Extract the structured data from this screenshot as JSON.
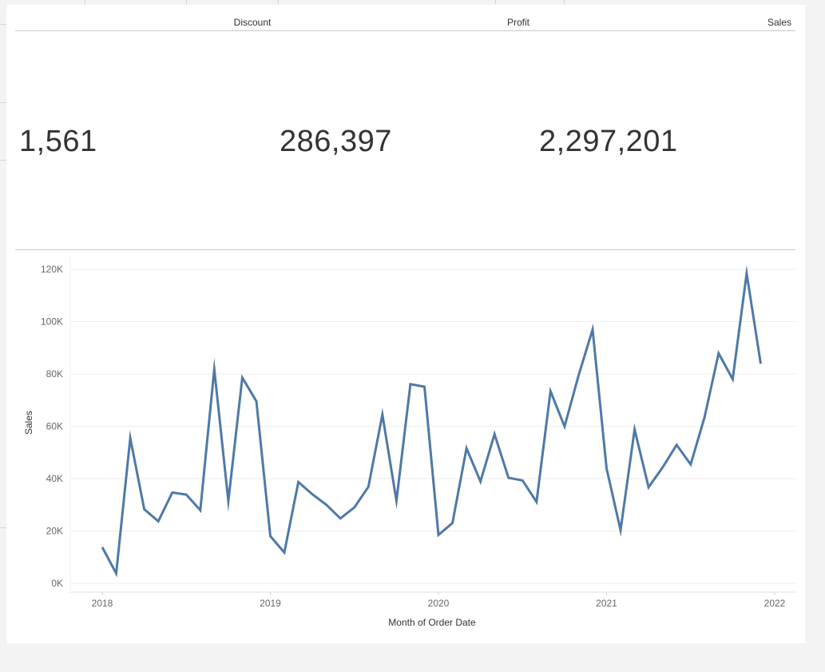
{
  "kpis": [
    {
      "label": "Discount",
      "value": "1,561"
    },
    {
      "label": "Profit",
      "value": "286,397"
    },
    {
      "label": "Sales",
      "value": "2,297,201"
    }
  ],
  "colors": {
    "line": "#4e79a7",
    "grid": "#eeeeee",
    "axis_text": "#666666"
  },
  "chart_data": {
    "type": "line",
    "title": "",
    "xlabel": "Month of Order Date",
    "ylabel": "Sales",
    "ylim": [
      0,
      120000
    ],
    "y_ticks": [
      "0K",
      "20K",
      "40K",
      "60K",
      "80K",
      "100K",
      "120K"
    ],
    "x_ticks": [
      "2018",
      "2019",
      "2020",
      "2021",
      "2022"
    ],
    "grid": true,
    "series": [
      {
        "values": [
          13800,
          3800,
          55500,
          28300,
          23700,
          34700,
          33900,
          27900,
          81800,
          31400,
          78600,
          69600,
          18000,
          11800,
          38700,
          34000,
          30000,
          24800,
          29000,
          36900,
          64500,
          31500,
          76100,
          75100,
          18500,
          23000,
          51600,
          38900,
          57000,
          40300,
          39300,
          31100,
          73400,
          59900,
          79400,
          97000,
          43900,
          20300,
          58800,
          36700,
          44300,
          52900,
          45400,
          63600,
          87900,
          78000,
          118400,
          83900
        ]
      }
    ],
    "x_start": "2018-01",
    "x_interval": "month"
  }
}
